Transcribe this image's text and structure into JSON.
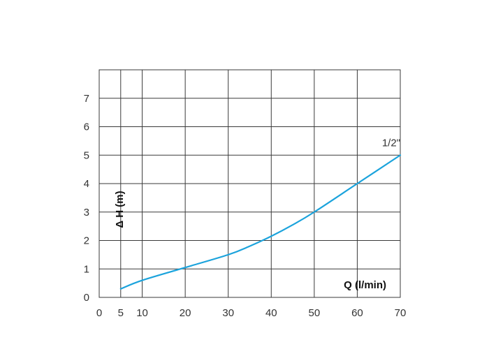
{
  "chart_data": {
    "type": "line",
    "x_ticks": [
      0,
      5,
      10,
      20,
      30,
      40,
      50,
      60,
      70
    ],
    "y_ticks": [
      0,
      1,
      2,
      3,
      4,
      5,
      6,
      7
    ],
    "xlim": [
      0,
      70
    ],
    "ylim": [
      0,
      8
    ],
    "xlabel": "Q (l/min)",
    "ylabel": "Δ H (m)",
    "grid": true,
    "colors": {
      "series": "#1ba3dc",
      "grid": "#3a3a3a"
    },
    "series": [
      {
        "name": "1/2\"",
        "x": [
          5,
          10,
          20,
          30,
          35,
          40,
          45,
          50,
          60,
          70
        ],
        "y": [
          0.3,
          0.6,
          1.05,
          1.5,
          1.8,
          2.15,
          2.55,
          3.0,
          4.0,
          5.0
        ]
      }
    ]
  }
}
